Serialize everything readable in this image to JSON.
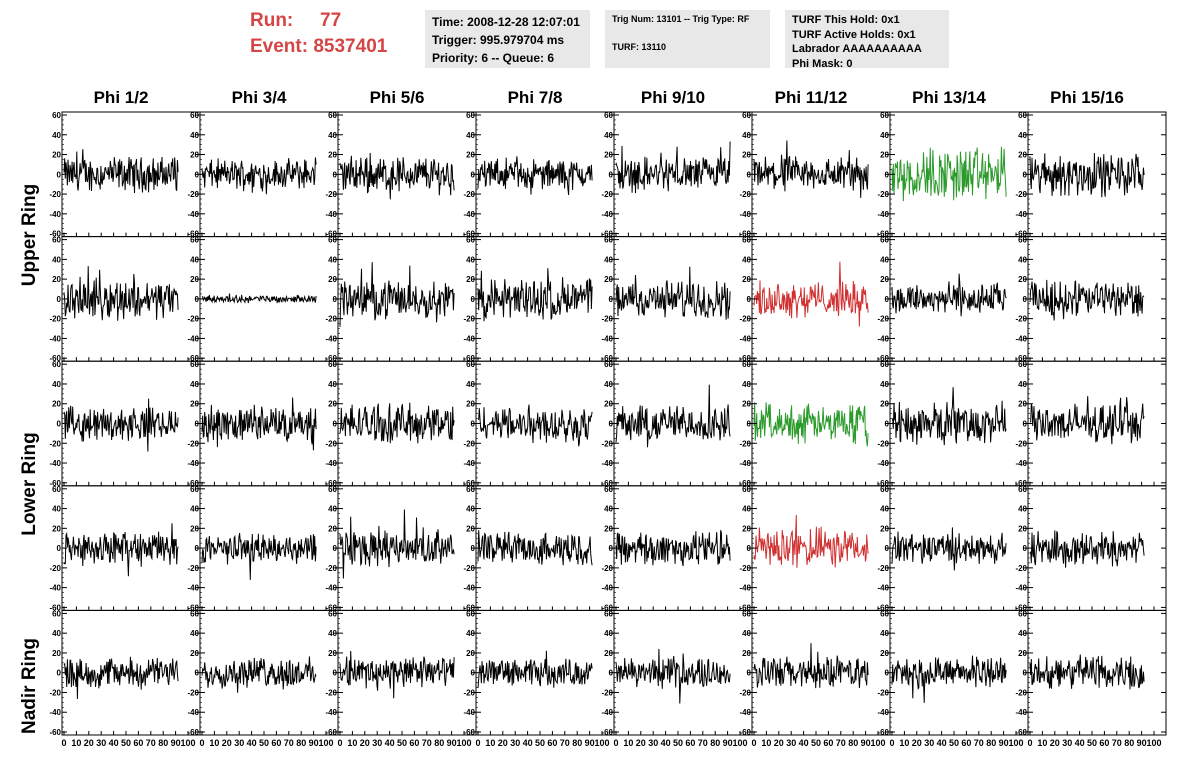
{
  "header": {
    "run_label": "Run:",
    "run_value": "77",
    "event_label": "Event:",
    "event_value": "8537401"
  },
  "time_box": {
    "time": "Time: 2008-12-28 12:07:01",
    "trigger": "Trigger: 995.979704 ms",
    "priority": "Priority: 6 -- Queue: 6"
  },
  "trig_box": {
    "trig": "Trig Num: 13101 -- Trig Type: RF",
    "turf": "TURF: 13110"
  },
  "turf_box": {
    "this_hold": "TURF This Hold: 0x1",
    "active_holds": "TURF Active Holds: 0x1",
    "labrador": "Labrador AAAAAAAAAA",
    "phi_mask": "Phi Mask: 0"
  },
  "phi_labels": [
    "Phi 1/2",
    "Phi 3/4",
    "Phi 5/6",
    "Phi 7/8",
    "Phi 9/10",
    "Phi 11/12",
    "Phi 13/14",
    "Phi 15/16"
  ],
  "ring_labels": [
    {
      "label": "Upper Ring",
      "rows": [
        0,
        1
      ]
    },
    {
      "label": "Lower Ring",
      "rows": [
        2,
        3
      ]
    },
    {
      "label": "Nadir Ring",
      "rows": [
        4,
        4
      ]
    }
  ],
  "colors": {
    "trace": "#000000",
    "triggered_green": "#2a9a2a",
    "triggered_red": "#d03030",
    "header_red": "#d64545",
    "info_bg": "#e8e8e8"
  },
  "chart_data": {
    "type": "line",
    "layout": "grid of 5 rows x 8 columns of waveform panels",
    "x_ticks": [
      0,
      10,
      20,
      30,
      40,
      50,
      60,
      70,
      80,
      90,
      100
    ],
    "y_ticks": [
      -60,
      -40,
      -20,
      0,
      20,
      40,
      60
    ],
    "xlim": [
      0,
      100
    ],
    "ylim": [
      -60,
      60
    ],
    "grid": false,
    "rows": 5,
    "cols": 8,
    "colored_panels": [
      {
        "row": 0,
        "col": 6,
        "color": "triggered_green"
      },
      {
        "row": 1,
        "col": 5,
        "color": "triggered_red"
      },
      {
        "row": 2,
        "col": 5,
        "color": "triggered_green"
      },
      {
        "row": 3,
        "col": 5,
        "color": "triggered_red"
      }
    ],
    "amplitude_hint": [
      [
        14,
        12,
        15,
        12,
        14,
        14,
        22,
        17
      ],
      [
        16,
        3,
        15,
        17,
        15,
        14,
        13,
        15
      ],
      [
        13,
        14,
        16,
        15,
        15,
        15,
        17,
        15
      ],
      [
        14,
        12,
        15,
        13,
        14,
        16,
        12,
        14
      ],
      [
        12,
        12,
        13,
        11,
        12,
        13,
        12,
        14
      ]
    ]
  }
}
